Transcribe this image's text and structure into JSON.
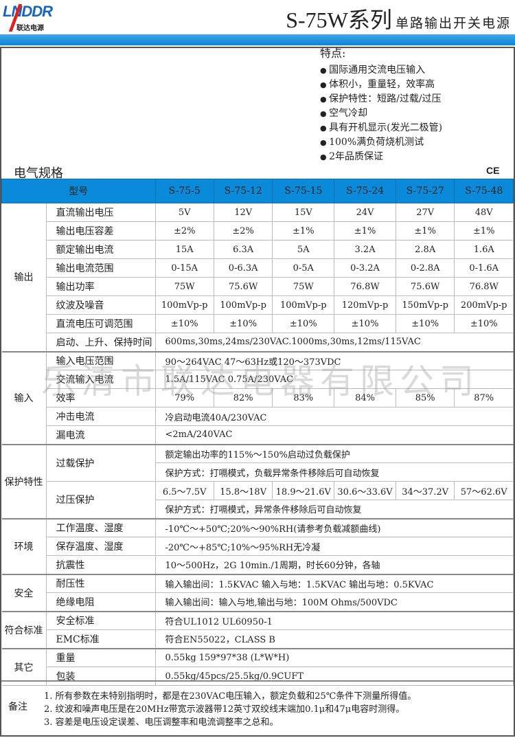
{
  "brand": {
    "logo_text": "LNDDR",
    "logo_sub": "联达电源"
  },
  "header": {
    "title": "S-75W系列",
    "subtitle": "单路输出开关电源"
  },
  "features": {
    "heading": "特点:",
    "items": [
      "国际通用交流电压输入",
      "体积小，重量轻，效率高",
      "保护特性：短路/过载/过压",
      "空气冷却",
      "具有开机显示(发光二极管)",
      "100%满负荷烧机测试",
      "2年品质保证"
    ]
  },
  "spec_title": "电气规格",
  "ce_mark": "CE",
  "table": {
    "header": {
      "label": "型号",
      "models": [
        "S-75-5",
        "S-75-12",
        "S-75-15",
        "S-75-24",
        "S-75-27",
        "S-75-48"
      ]
    },
    "groups": [
      {
        "name": "输出",
        "rows": [
          {
            "param": "直流输出电压",
            "values": [
              "5V",
              "12V",
              "15V",
              "24V",
              "27V",
              "48V"
            ]
          },
          {
            "param": "输出电压容差",
            "values": [
              "±2%",
              "±2%",
              "±1%",
              "±1%",
              "±1%",
              "±1%"
            ]
          },
          {
            "param": "额定输出电流",
            "values": [
              "15A",
              "6.3A",
              "5A",
              "3.2A",
              "2.8A",
              "1.6A"
            ]
          },
          {
            "param": "输出电流范围",
            "values": [
              "0-15A",
              "0-6.3A",
              "0-5A",
              "0-3.2A",
              "0-2.8A",
              "0-1.6A"
            ]
          },
          {
            "param": "输出功率",
            "values": [
              "75W",
              "75.6W",
              "75W",
              "76.8W",
              "75.6W",
              "76.8W"
            ]
          },
          {
            "param": "纹波及噪音",
            "values": [
              "100mVp-p",
              "100mVp-p",
              "100mVp-p",
              "120mVp-p",
              "150mVp-p",
              "200mVp-p"
            ]
          },
          {
            "param": "直流电压可调范围",
            "values": [
              "±10%",
              "±10%",
              "±10%",
              "±10%",
              "±10%",
              "±10%"
            ]
          },
          {
            "param": "启动、上升、保持时间",
            "text": "600ms,30ms,24ms/230VAC.1000ms,30ms,12ms/115VAC"
          }
        ]
      },
      {
        "name": "输入",
        "rows": [
          {
            "param": "输入电压范围",
            "text": "90～264VAC 47～63Hz或120～373VDC"
          },
          {
            "param": "交流输入电流",
            "text": "1.5A/115VAC     0.75A/230VAC"
          },
          {
            "param": "效率",
            "values": [
              "79%",
              "82%",
              "83%",
              "84%",
              "85%",
              "87%"
            ]
          },
          {
            "param": "冲击电流",
            "text": "冷启动电流40A/230VAC"
          },
          {
            "param": "漏电流",
            "text": "<2mA/240VAC"
          }
        ]
      },
      {
        "name": "保护特性",
        "rows": [
          {
            "param": "过载保护",
            "param_rowspan": 2,
            "text": "额定输出功率的115%～150%启动过负载保护"
          },
          {
            "text": "保护方式：打嗝模式，负载异常条件移除后可自动恢复"
          },
          {
            "param": "过压保护",
            "param_rowspan": 2,
            "values": [
              "6.5～7.5V",
              "15.8～18V",
              "18.9～21.6V",
              "30.6～33.6V",
              "34～37.2V",
              "57～62.6V"
            ]
          },
          {
            "text": "保护方式：打嗝模式，异常条件移除后可自动恢复"
          }
        ]
      },
      {
        "name": "环境",
        "rows": [
          {
            "param": "工作温度、湿度",
            "text": "-10℃～+50℃;20%～90%RH(请参考负载减额曲线)"
          },
          {
            "param": "保存温度、湿度",
            "text": "-20℃～+85℃;10%～95%RH无冷凝"
          },
          {
            "param": "抗震性",
            "text": "10～500Hz，2G 10min./1周期，时长60分钟，各轴"
          }
        ]
      },
      {
        "name": "安全",
        "rows": [
          {
            "param": "耐压性",
            "text": "输入输出间：1.5KVAC    输入与地：1.5KVAC    输出与地：0.5KVAC"
          },
          {
            "param": "绝缘电阻",
            "text": "输入输出间：输入与地,输出与地：100M Ohms/500VDC"
          }
        ]
      },
      {
        "name": "符合标准",
        "rows": [
          {
            "param": "安全标准",
            "text": "符合UL1012  UL60950-1"
          },
          {
            "param": "EMC标准",
            "text": "符合EN55022，CLASS B"
          }
        ]
      },
      {
        "name": "其它",
        "rows": [
          {
            "param": "重量",
            "text": "0.55kg  159*97*38 (L*W*H)"
          },
          {
            "param": "包装",
            "text": "0.55kg/45pcs/25.5kg/0.9CUFT"
          }
        ]
      }
    ]
  },
  "remarks": {
    "label": "备注",
    "items": [
      "1. 所有参数在未特别指明时，都是在230VAC电压输入，额定负载和25℃条件下测量所得值。",
      "2. 纹波和噪声电压是在20MHz带宽示波器带12英寸双绞线末端加0.1μ和47μ电容时测得。",
      "3. 容差是电压设定误差、电压调整率和电流调整率之总和。"
    ]
  },
  "watermark": "乐清市联达电器有限公司",
  "colors": {
    "accent": "#0a8ad8",
    "logo_blue": "#1565c0",
    "logo_red": "#e02020"
  }
}
